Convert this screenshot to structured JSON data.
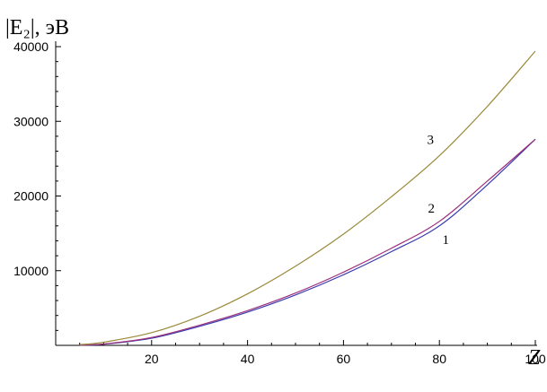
{
  "chart_data": {
    "type": "line",
    "ylabel": "|E₂|, эВ",
    "xlabel": "Z",
    "xlim": [
      0,
      100
    ],
    "ylim": [
      0,
      40000
    ],
    "xticks": [
      20,
      40,
      60,
      80,
      100
    ],
    "yticks": [
      10000,
      20000,
      30000,
      40000
    ],
    "x": [
      5,
      10,
      20,
      30,
      40,
      50,
      60,
      70,
      80,
      90,
      100
    ],
    "series": [
      {
        "name": "1",
        "color": "#3b3bb0",
        "values": [
          30,
          150,
          950,
          2550,
          4450,
          6750,
          9450,
          12550,
          16000,
          21500,
          27600
        ]
      },
      {
        "name": "2",
        "color": "#9b2f7a",
        "values": [
          40,
          180,
          1050,
          2700,
          4650,
          7000,
          9800,
          13000,
          16600,
          22000,
          27600
        ]
      },
      {
        "name": "3",
        "color": "#9a8a3a",
        "values": [
          100,
          420,
          1700,
          3900,
          6900,
          10600,
          14900,
          19900,
          25400,
          32000,
          39400
        ]
      }
    ],
    "grid": false,
    "legend": "inline labels"
  }
}
